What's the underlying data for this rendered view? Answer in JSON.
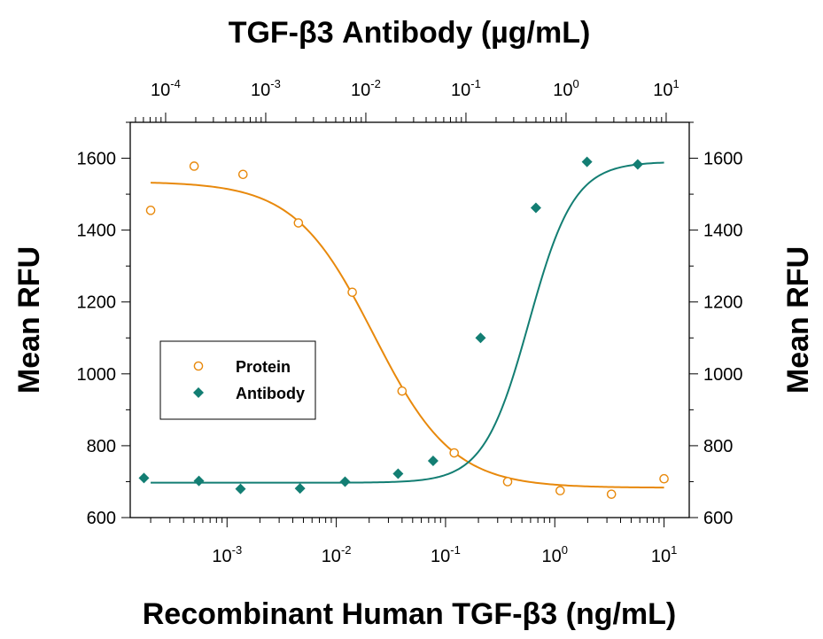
{
  "chart_data": {
    "type": "scatter",
    "title": "TGF-β3 Antibody (µg/mL)",
    "xlabel": "Recombinant Human TGF-β3 (ng/mL)",
    "ylabel": "Mean RFU",
    "ylabel_right": "Mean RFU",
    "x_scale": "log",
    "xlim": [
      0.00013,
      17
    ],
    "x_ticks": [
      {
        "base": "10",
        "exp": "-3",
        "value": 0.001
      },
      {
        "base": "10",
        "exp": "-2",
        "value": 0.01
      },
      {
        "base": "10",
        "exp": "-1",
        "value": 0.1
      },
      {
        "base": "10",
        "exp": "0",
        "value": 1
      },
      {
        "base": "10",
        "exp": "1",
        "value": 10
      }
    ],
    "top_axis": {
      "scale": "log",
      "xlim": [
        4.43e-05,
        17
      ],
      "ticks": [
        {
          "base": "10",
          "exp": "-4",
          "value": 0.0001
        },
        {
          "base": "10",
          "exp": "-3",
          "value": 0.001
        },
        {
          "base": "10",
          "exp": "-2",
          "value": 0.01
        },
        {
          "base": "10",
          "exp": "-1",
          "value": 0.1
        },
        {
          "base": "10",
          "exp": "0",
          "value": 1
        },
        {
          "base": "10",
          "exp": "1",
          "value": 10
        }
      ]
    },
    "ylim": [
      600,
      1700
    ],
    "y_ticks": [
      "600",
      "800",
      "1000",
      "1200",
      "1400",
      "1600"
    ],
    "legend_position": "center-left",
    "series": [
      {
        "name": "Protein",
        "marker": "open-circle",
        "color": "#E8890C",
        "x": [
          0.0002,
          0.0005,
          0.0014,
          0.0045,
          0.014,
          0.04,
          0.12,
          0.37,
          1.12,
          3.3,
          10
        ],
        "y": [
          1455,
          1578,
          1555,
          1420,
          1227,
          952,
          780,
          700,
          675,
          665,
          708
        ]
      },
      {
        "name": "Antibody",
        "marker": "filled-diamond",
        "color": "#137E73",
        "top_x": [
          6.07e-05,
          0.000215,
          0.00056,
          0.0022,
          0.0062,
          0.021,
          0.047,
          0.14,
          0.5,
          1.62,
          5.2
        ],
        "y": [
          710,
          702,
          680,
          681,
          700,
          722,
          758,
          1100,
          1462,
          1590,
          1583
        ]
      }
    ],
    "fits": [
      {
        "series": "Protein",
        "model": "4PL-decreasing",
        "top": 1535,
        "bottom": 683,
        "ec50": 0.022,
        "hill": 1.2,
        "x_range": [
          0.0002,
          10
        ]
      },
      {
        "series": "Antibody",
        "model": "4PL-increasing",
        "bottom": 697,
        "top": 1590,
        "ec50": 0.58,
        "hill": 2.1,
        "x_range": [
          0.0002,
          10
        ]
      }
    ]
  }
}
